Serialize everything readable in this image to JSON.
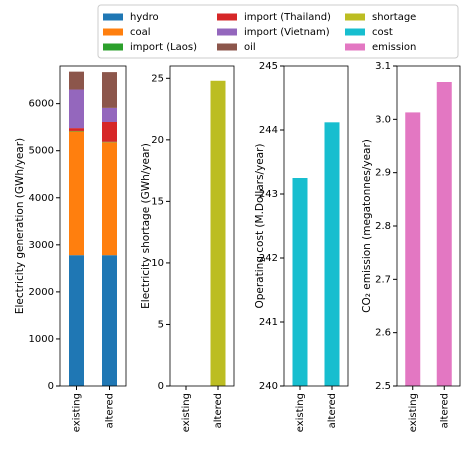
{
  "chart_data": [
    {
      "type": "bar",
      "stacked": true,
      "ylabel": "Electricity generation (GWh/year)",
      "categories": [
        "existing",
        "altered"
      ],
      "series": [
        {
          "name": "hydro",
          "color": "#1f77b4",
          "values": [
            2780,
            2780
          ]
        },
        {
          "name": "coal",
          "color": "#ff7f0e",
          "values": [
            2630,
            2400
          ]
        },
        {
          "name": "import (Laos)",
          "color": "#2ca02c",
          "values": [
            10,
            10
          ]
        },
        {
          "name": "import (Thailand)",
          "color": "#d62728",
          "values": [
            60,
            420
          ]
        },
        {
          "name": "import (Vietnam)",
          "color": "#9467bd",
          "values": [
            820,
            300
          ]
        },
        {
          "name": "oil",
          "color": "#8c564b",
          "values": [
            380,
            760
          ]
        }
      ],
      "ylim": [
        0,
        6800
      ],
      "yticks": [
        0,
        1000,
        2000,
        3000,
        4000,
        5000,
        6000
      ]
    },
    {
      "type": "bar",
      "ylabel": "Electricity shortage (GWh/year)",
      "categories": [
        "existing",
        "altered"
      ],
      "series": [
        {
          "name": "shortage",
          "color": "#bcbd22",
          "values": [
            0,
            24.8
          ]
        }
      ],
      "ylim": [
        0,
        26
      ],
      "yticks": [
        0,
        5,
        10,
        15,
        20,
        25
      ]
    },
    {
      "type": "bar",
      "ylabel": "Operating cost (M.Dollars/year)",
      "categories": [
        "existing",
        "altered"
      ],
      "series": [
        {
          "name": "cost",
          "color": "#17becf",
          "values": [
            243.25,
            244.12
          ]
        }
      ],
      "ylim": [
        240,
        245
      ],
      "yticks": [
        240,
        241,
        242,
        243,
        244,
        245
      ]
    },
    {
      "type": "bar",
      "ylabel": "CO₂ emission (megatonnes/year)",
      "categories": [
        "existing",
        "altered"
      ],
      "series": [
        {
          "name": "emission",
          "color": "#e377c2",
          "values": [
            3.013,
            3.07
          ]
        }
      ],
      "ylim": [
        2.5,
        3.1
      ],
      "yticks": [
        2.5,
        2.6,
        2.7,
        2.8,
        2.9,
        {
          "value": 3,
          "label": "3.0"
        },
        3.1
      ]
    }
  ]
}
